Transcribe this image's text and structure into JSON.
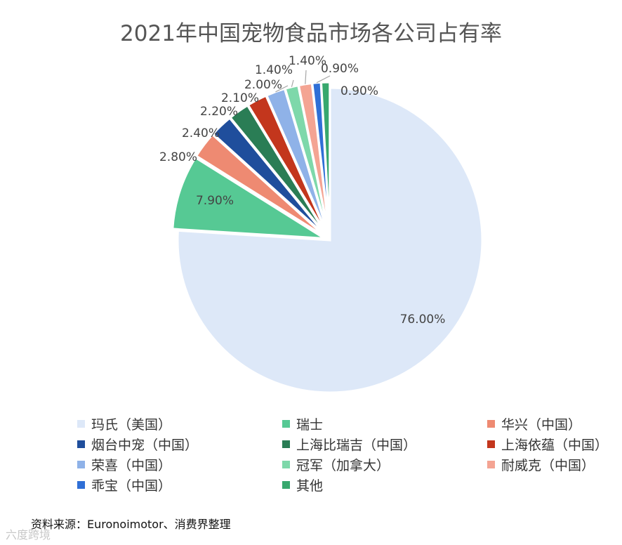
{
  "chart_data": {
    "type": "pie",
    "title": "2021年中国宠物食品市场各公司占有率",
    "slices": [
      {
        "name": "玛氏（美国）",
        "value": 76.0,
        "label": "76.00%",
        "color": "#dde8f8"
      },
      {
        "name": "瑞士",
        "value": 7.9,
        "label": "7.90%",
        "color": "#56c994"
      },
      {
        "name": "华兴（中国）",
        "value": 2.8,
        "label": "2.80%",
        "color": "#ee8a72"
      },
      {
        "name": "烟台中宠（中国）",
        "value": 2.4,
        "label": "2.40%",
        "color": "#1f4e9c"
      },
      {
        "name": "上海比瑞吉（中国）",
        "value": 2.2,
        "label": "2.20%",
        "color": "#2a7d55"
      },
      {
        "name": "上海依蕴（中国）",
        "value": 2.1,
        "label": "2.10%",
        "color": "#c3361d"
      },
      {
        "name": "荣喜（中国）",
        "value": 2.0,
        "label": "2.00%",
        "color": "#8fb2e8"
      },
      {
        "name": "冠军（加拿大）",
        "value": 1.4,
        "label": "1.40%",
        "color": "#7ed8aa"
      },
      {
        "name": "耐威克（中国）",
        "value": 1.4,
        "label": "1.40%",
        "color": "#f4a493"
      },
      {
        "name": "乖宝（中国）",
        "value": 0.9,
        "label": "0.90%",
        "color": "#2f6fd6"
      },
      {
        "name": "其他",
        "value": 0.9,
        "label": "0.90%",
        "color": "#37a86e"
      }
    ],
    "legend_position": "bottom"
  },
  "source_text": "资料来源：Euronoimotor、消费界整理",
  "watermark_text": "六度跨境"
}
